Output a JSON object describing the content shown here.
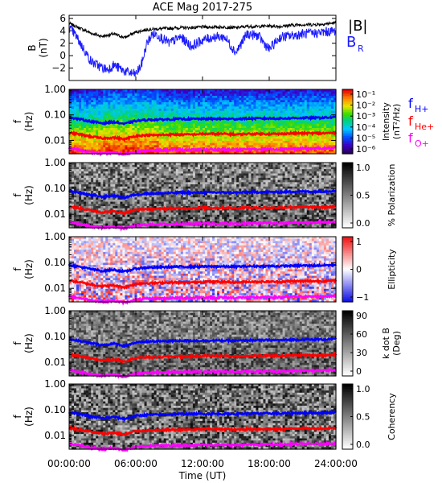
{
  "title": "ACE Mag 2017-275",
  "x_axis": {
    "label": "Time (UT)",
    "ticks": [
      "00:00:00",
      "06:00:00",
      "12:00:00",
      "18:00:00",
      "24:00:00"
    ]
  },
  "colors": {
    "bmag": "#000000",
    "br": "#1a1aff",
    "fH": "#0000ff",
    "fHe": "#ff0000",
    "fO": "#ff00ff"
  },
  "chart_data": [
    {
      "type": "line",
      "panel": "magnetic-field",
      "ylabel_lines": [
        "B",
        "(nT)"
      ],
      "ylim": [
        -4,
        6.5
      ],
      "yticks": [
        "6",
        "4",
        "2",
        "0",
        "−2"
      ],
      "xlim": [
        0,
        24
      ],
      "legend": [
        {
          "text": "|B|",
          "sub": ""
        },
        {
          "text": "B",
          "sub": "R"
        }
      ],
      "series": [
        {
          "name": "|B|",
          "x": [
            0,
            1,
            2,
            3,
            4,
            5,
            6,
            7,
            8,
            9,
            10,
            11,
            12,
            13,
            14,
            15,
            16,
            17,
            18,
            19,
            20,
            21,
            22,
            23,
            24
          ],
          "y": [
            5.2,
            4.4,
            3.6,
            3.1,
            3.5,
            2.9,
            3.8,
            4.2,
            4.3,
            4.4,
            4.5,
            4.5,
            4.6,
            4.6,
            4.6,
            4.5,
            4.7,
            4.7,
            4.8,
            4.7,
            4.9,
            5.0,
            5.0,
            5.1,
            5.3
          ]
        },
        {
          "name": "B_R",
          "x": [
            0,
            0.5,
            1,
            1.5,
            2,
            2.5,
            3,
            3.5,
            4,
            4.5,
            5,
            5.5,
            6,
            6.5,
            7,
            7.5,
            8,
            9,
            10,
            11,
            12,
            13,
            14,
            15,
            16,
            17,
            18,
            19,
            20,
            21,
            22,
            23,
            24
          ],
          "y": [
            4.5,
            3.5,
            2.0,
            0.5,
            -1.0,
            -1.5,
            -2.0,
            -2.2,
            -1.5,
            -2.0,
            -2.5,
            -2.8,
            -3.0,
            -1.5,
            2.0,
            3.5,
            3.3,
            2.0,
            3.0,
            1.5,
            2.5,
            3.0,
            3.0,
            0.5,
            3.5,
            3.2,
            1.0,
            3.0,
            3.2,
            3.5,
            3.6,
            3.8,
            4.0
          ]
        }
      ]
    },
    {
      "type": "heatmap",
      "panel": "intensity",
      "ylabel_lines": [
        "f",
        "(Hz)"
      ],
      "yscale": "log",
      "ylim": [
        0.003,
        1.0
      ],
      "yticks": [
        "1.00",
        "0.10",
        "0.01"
      ],
      "colorbar": {
        "label": "Intensity (nT²/Hz)",
        "ticks": [
          "10⁻¹",
          "10⁻²",
          "10⁻³",
          "10⁻⁴",
          "10⁻⁵",
          "10⁻⁶"
        ],
        "colormap": "rainbow"
      },
      "legend": [
        {
          "text": "f",
          "sub": "H+"
        },
        {
          "text": "f",
          "sub": "He+"
        },
        {
          "text": "f",
          "sub": "O+"
        }
      ]
    },
    {
      "type": "heatmap",
      "panel": "polarization",
      "ylabel_lines": [
        "f",
        "(Hz)"
      ],
      "yscale": "log",
      "ylim": [
        0.003,
        1.0
      ],
      "yticks": [
        "1.00",
        "0.10",
        "0.01"
      ],
      "colorbar": {
        "label": "% Polarization",
        "ticks": [
          "1.0",
          "0.5",
          "0.0"
        ],
        "colormap": "grayscale"
      }
    },
    {
      "type": "heatmap",
      "panel": "ellipticity",
      "ylabel_lines": [
        "f",
        "(Hz)"
      ],
      "yscale": "log",
      "ylim": [
        0.003,
        1.0
      ],
      "yticks": [
        "1.00",
        "0.10",
        "0.01"
      ],
      "colorbar": {
        "label": "Ellipticity",
        "ticks": [
          "1",
          "0",
          "−1"
        ],
        "colormap": "blue-white-red"
      }
    },
    {
      "type": "heatmap",
      "panel": "k-dot-b",
      "ylabel_lines": [
        "f",
        "(Hz)"
      ],
      "yscale": "log",
      "ylim": [
        0.003,
        1.0
      ],
      "yticks": [
        "1.00",
        "0.10",
        "0.01"
      ],
      "colorbar": {
        "label": "k dot B (Deg)",
        "ticks": [
          "90",
          "60",
          "30",
          "0"
        ],
        "colormap": "grayscale"
      }
    },
    {
      "type": "heatmap",
      "panel": "coherency",
      "ylabel_lines": [
        "f",
        "(Hz)"
      ],
      "yscale": "log",
      "ylim": [
        0.003,
        1.0
      ],
      "yticks": [
        "1.00",
        "0.10",
        "0.01"
      ],
      "colorbar": {
        "label": "Coherency",
        "ticks": [
          "1.0",
          "0.5",
          "0.0"
        ],
        "colormap": "grayscale"
      }
    },
    {
      "type": "line",
      "panel": "gyrofrequency-overlays",
      "note_source": "curves drawn on each spectral panel",
      "series": [
        {
          "name": "fH+",
          "x": [
            0,
            1,
            2,
            3,
            4,
            5,
            6,
            7,
            8,
            9,
            10,
            11,
            12,
            13,
            14,
            15,
            16,
            17,
            18,
            19,
            20,
            21,
            22,
            23,
            24
          ],
          "y": [
            0.08,
            0.067,
            0.055,
            0.047,
            0.053,
            0.044,
            0.058,
            0.064,
            0.065,
            0.067,
            0.069,
            0.069,
            0.07,
            0.07,
            0.07,
            0.069,
            0.072,
            0.072,
            0.073,
            0.072,
            0.075,
            0.076,
            0.076,
            0.078,
            0.081
          ]
        },
        {
          "name": "fHe+",
          "x": [
            0,
            1,
            2,
            3,
            4,
            5,
            6,
            7,
            8,
            9,
            10,
            11,
            12,
            13,
            14,
            15,
            16,
            17,
            18,
            19,
            20,
            21,
            22,
            23,
            24
          ],
          "y": [
            0.02,
            0.017,
            0.014,
            0.012,
            0.013,
            0.011,
            0.015,
            0.016,
            0.016,
            0.017,
            0.017,
            0.017,
            0.018,
            0.018,
            0.018,
            0.017,
            0.018,
            0.018,
            0.018,
            0.018,
            0.019,
            0.019,
            0.019,
            0.019,
            0.02
          ]
        },
        {
          "name": "fO+",
          "x": [
            0,
            1,
            2,
            3,
            4,
            5,
            6,
            7,
            8,
            9,
            10,
            11,
            12,
            13,
            14,
            15,
            16,
            17,
            18,
            19,
            20,
            21,
            22,
            23,
            24
          ],
          "y": [
            0.005,
            0.0042,
            0.0034,
            0.003,
            0.0033,
            0.0028,
            0.0036,
            0.004,
            0.0041,
            0.0042,
            0.0043,
            0.0043,
            0.0044,
            0.0044,
            0.0044,
            0.0043,
            0.0045,
            0.0045,
            0.0046,
            0.0045,
            0.0047,
            0.0048,
            0.0048,
            0.0049,
            0.0051
          ]
        }
      ]
    }
  ]
}
